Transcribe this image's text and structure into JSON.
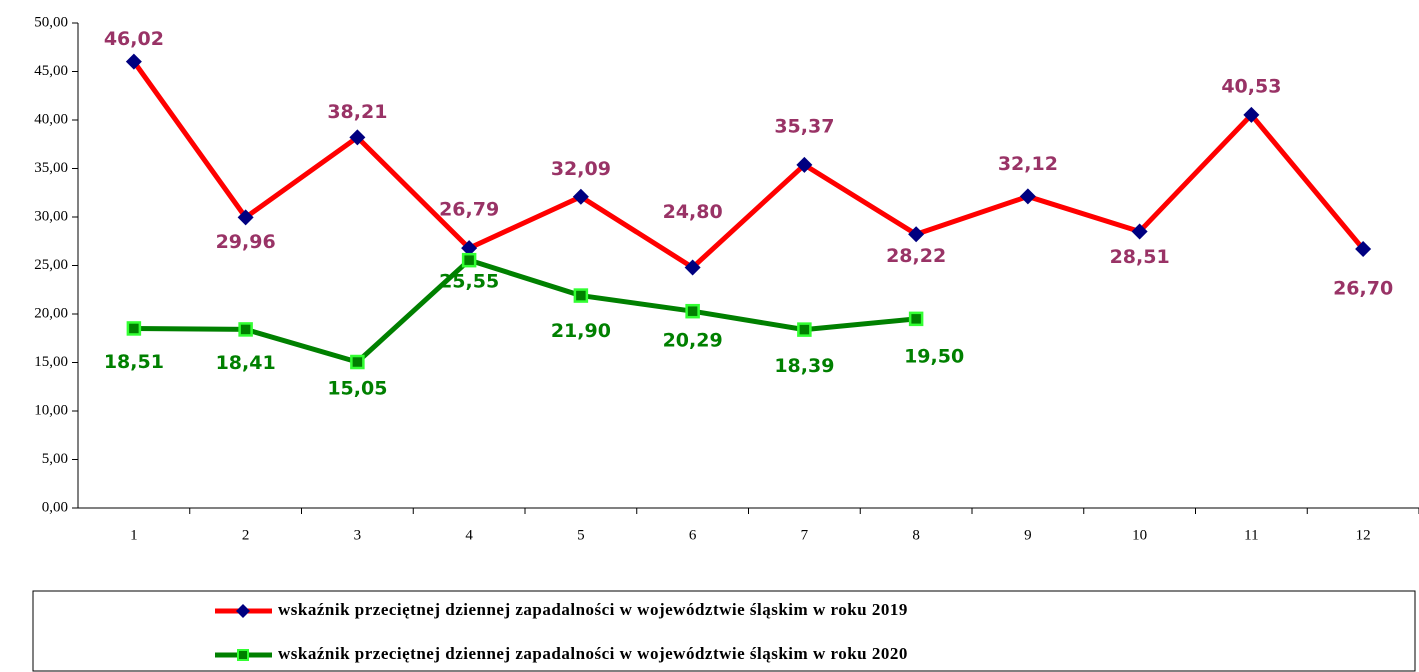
{
  "chart_data": {
    "type": "line",
    "categories": [
      "1",
      "2",
      "3",
      "4",
      "5",
      "6",
      "7",
      "8",
      "9",
      "10",
      "11",
      "12"
    ],
    "series": [
      {
        "name": "wskaźnik przeciętnej dziennej zapadalności w województwie śląskim w roku 2019",
        "color": "#ff0000",
        "marker_color": "#000080",
        "values": [
          46.02,
          29.96,
          38.21,
          26.79,
          32.09,
          24.8,
          35.37,
          28.22,
          32.12,
          28.51,
          40.53,
          26.7
        ],
        "value_labels": [
          "46,02",
          "29,96",
          "38,21",
          "26,79",
          "32,09",
          "24,80",
          "35,37",
          "28,22",
          "32,12",
          "28,51",
          "40,53",
          "26,70"
        ]
      },
      {
        "name": "wskaźnik przeciętnej dziennej zapadalności w województwie śląskim w roku 2020",
        "color": "#008000",
        "marker_color": "#33ff33",
        "values": [
          18.51,
          18.41,
          15.05,
          25.55,
          21.9,
          20.29,
          18.39,
          19.5,
          null,
          null,
          null,
          null
        ],
        "value_labels": [
          "18,51",
          "18,41",
          "15,05",
          "25,55",
          "21,90",
          "20,29",
          "18,39",
          "19,50",
          null,
          null,
          null,
          null
        ]
      }
    ],
    "ylim": [
      0,
      50
    ],
    "yticks": [
      {
        "value": 0,
        "label": "0,00"
      },
      {
        "value": 5,
        "label": "5,00"
      },
      {
        "value": 10,
        "label": "10,00"
      },
      {
        "value": 15,
        "label": "15,00"
      },
      {
        "value": 20,
        "label": "20,00"
      },
      {
        "value": 25,
        "label": "25,00"
      },
      {
        "value": 30,
        "label": "30,00"
      },
      {
        "value": 35,
        "label": "35,00"
      },
      {
        "value": 40,
        "label": "40,00"
      },
      {
        "value": 45,
        "label": "45,00"
      },
      {
        "value": 50,
        "label": "50,00"
      }
    ],
    "grid": false,
    "legend": "bottom"
  }
}
